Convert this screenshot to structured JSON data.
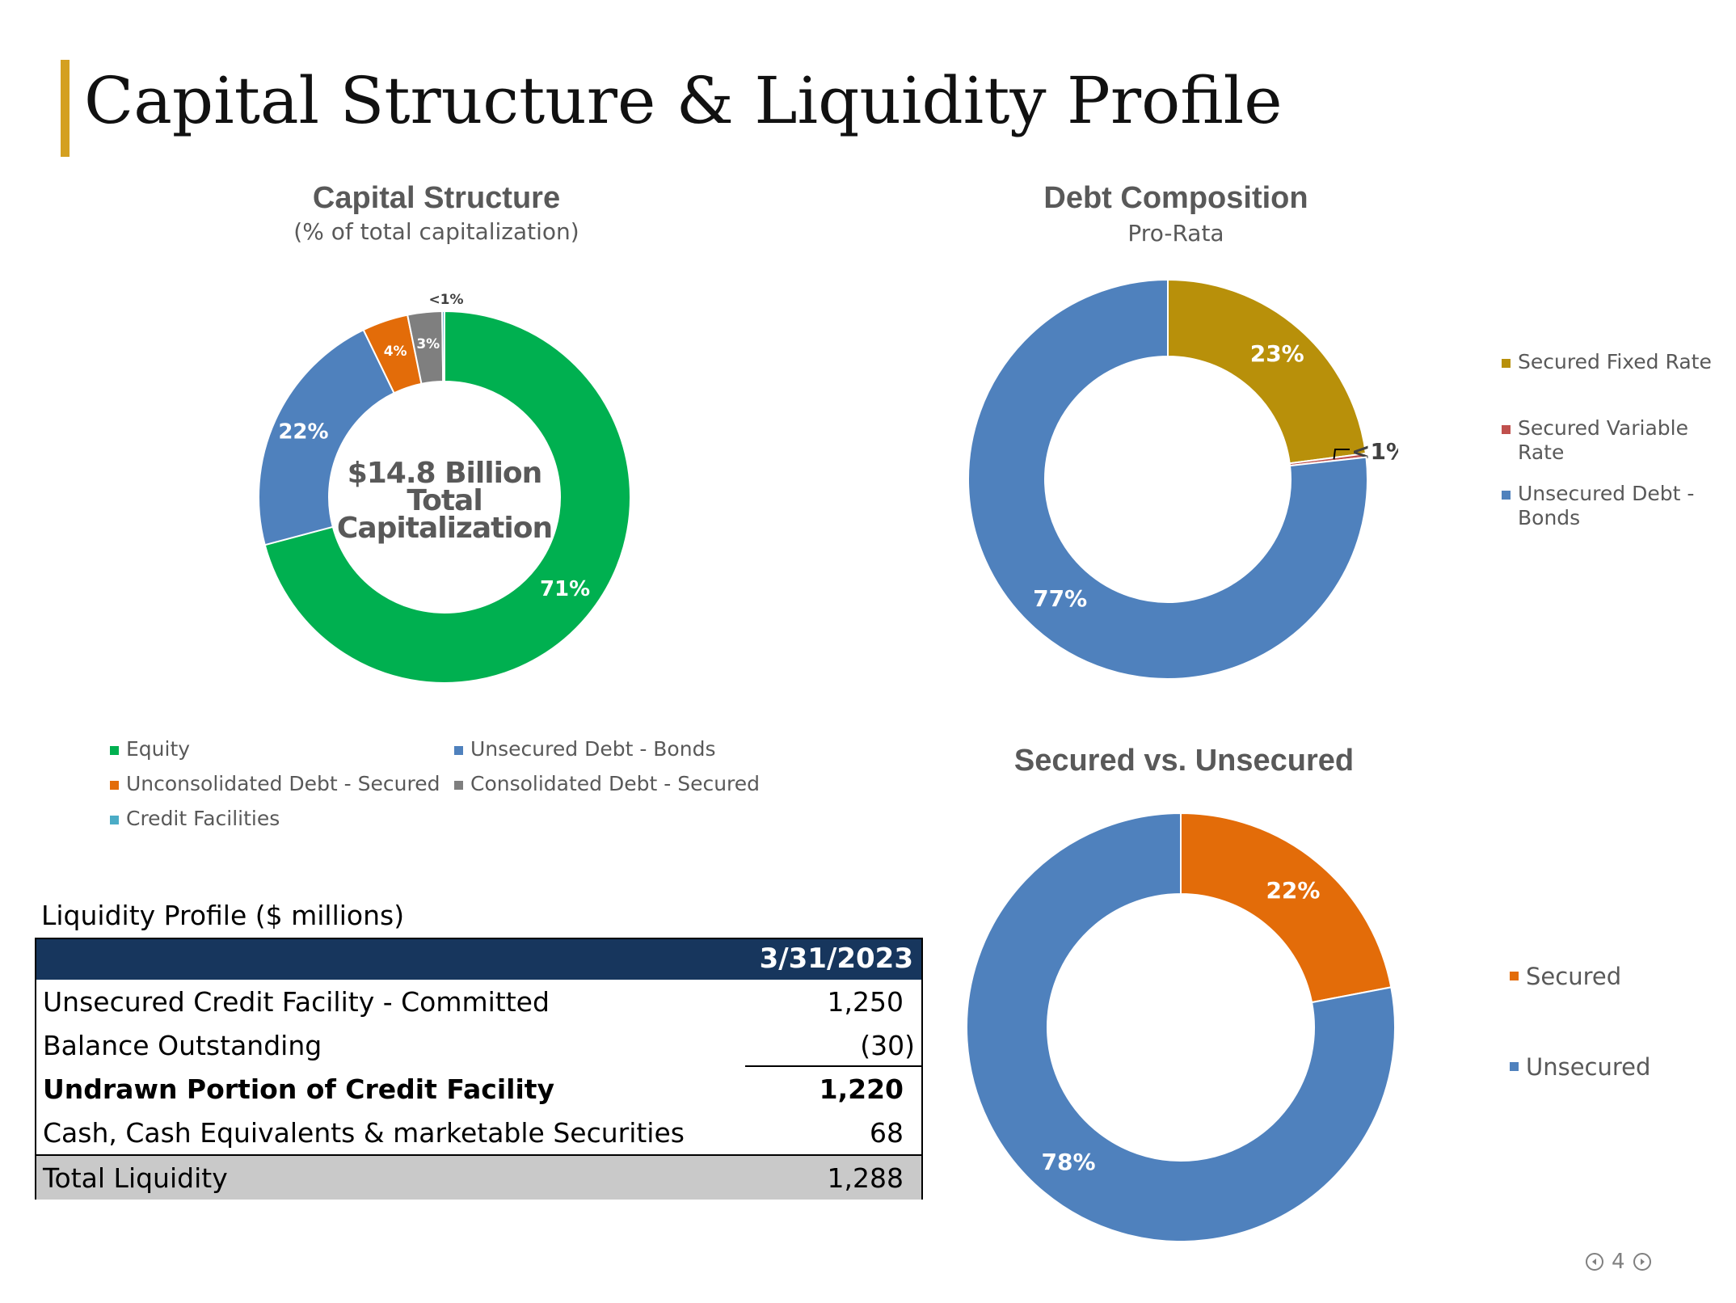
{
  "page": {
    "title": "Capital Structure & Liquidity Profile",
    "page_number": "4",
    "accent_color": "#d4a020"
  },
  "chart_data": [
    {
      "type": "pie",
      "variant": "donut",
      "title": "Capital Structure",
      "subtitle": "(% of total capitalization)",
      "center_text": [
        "$14.8 Billion",
        "Total",
        "Capitalization"
      ],
      "series": [
        {
          "name": "Equity",
          "value": 71,
          "label": "71%",
          "color": "#00b050"
        },
        {
          "name": "Unsecured Debt - Bonds",
          "value": 22,
          "label": "22%",
          "color": "#4f81bd"
        },
        {
          "name": "Unconsolidated Debt - Secured",
          "value": 4,
          "label": "4%",
          "color": "#e36c09"
        },
        {
          "name": "Consolidated Debt - Secured",
          "value": 3,
          "label": "3%",
          "color": "#7f7f7f"
        },
        {
          "name": "Credit Facilities",
          "value": 0.2,
          "label": "<1%",
          "color": "#4bacc6"
        }
      ],
      "legend_position": "bottom"
    },
    {
      "type": "pie",
      "variant": "donut",
      "title": "Debt Composition",
      "subtitle": "Pro-Rata",
      "series": [
        {
          "name": "Secured Fixed Rate",
          "value": 23,
          "label": "23%",
          "color": "#b8900a"
        },
        {
          "name": "Secured Variable Rate",
          "value": 0.3,
          "label": "<1%",
          "color": "#c0504d"
        },
        {
          "name": "Unsecured Debt - Bonds",
          "value": 77,
          "label": "77%",
          "color": "#4f81bd"
        }
      ],
      "legend_position": "right"
    },
    {
      "type": "pie",
      "variant": "donut",
      "title": "Secured vs. Unsecured",
      "series": [
        {
          "name": "Secured",
          "value": 22,
          "label": "22%",
          "color": "#e36c09"
        },
        {
          "name": "Unsecured",
          "value": 78,
          "label": "78%",
          "color": "#4f81bd"
        }
      ],
      "legend_position": "right"
    }
  ],
  "liquidity": {
    "title": "Liquidity Profile ($ millions)",
    "date_header": "3/31/2023",
    "header_color": "#17365d",
    "rows": [
      {
        "label": "Unsecured Credit Facility - Committed",
        "value": "1,250"
      },
      {
        "label": "Balance Outstanding",
        "value": "(30)"
      },
      {
        "label": "Undrawn Portion of Credit Facility",
        "value": "1,220"
      },
      {
        "label": "Cash, Cash Equivalents & marketable Securities",
        "value": "68"
      },
      {
        "label": "Total Liquidity",
        "value": "1,288"
      }
    ]
  }
}
